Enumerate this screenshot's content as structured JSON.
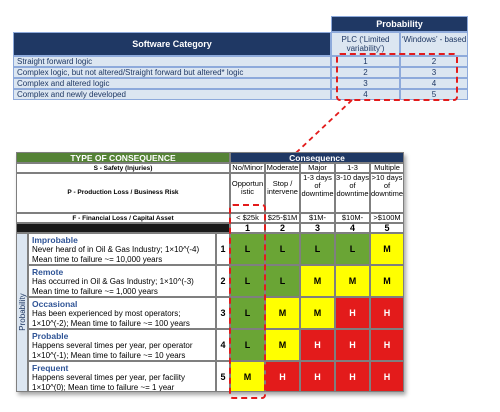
{
  "top_table": {
    "header_probability": "Probability",
    "header_category": "Software Category",
    "col_plc": "PLC (‘Limited variability’)",
    "col_windows": "‘Windows’ - based",
    "rows": [
      {
        "label": "Straight forward logic",
        "plc": "1",
        "win": "2"
      },
      {
        "label": "Complex logic, but not altered/Straight forward but altered* logic",
        "plc": "2",
        "win": "3"
      },
      {
        "label": "Complex and altered logic",
        "plc": "3",
        "win": "4"
      },
      {
        "label": "Complex and newly developed",
        "plc": "4",
        "win": "5"
      }
    ]
  },
  "matrix": {
    "type_header": "TYPE OF CONSEQUENCE",
    "consequence_header": "Consequence",
    "safety_label": "S - Safety (Injuries)",
    "production_label": "P - Production Loss / Business Risk",
    "financial_label": "F - Financial Loss / Capital Asset",
    "axis_label": "Probability",
    "columns": [
      {
        "num": "1",
        "s": "No/Minor",
        "p": "Opportun istic",
        "f": "< $25k"
      },
      {
        "num": "2",
        "s": "Moderate",
        "p": "Stop / intervene",
        "f": "$25-$1M"
      },
      {
        "num": "3",
        "s": "Major",
        "p": "1-3 days of downtime",
        "f": "$1M-"
      },
      {
        "num": "4",
        "s": "1-3",
        "p": "3-10 days of downtime",
        "f": "$10M-"
      },
      {
        "num": "5",
        "s": "Multiple",
        "p": ">10 days of downtime",
        "f": ">$100M"
      }
    ],
    "rows": [
      {
        "num": "1",
        "title": "Improbable",
        "line1": "Never heard of in Oil & Gas Industry; 1×10^(-4)",
        "line2": "Mean time to failure ~= 10,000 years",
        "line3": "",
        "cells": [
          "L",
          "L",
          "L",
          "L",
          "M"
        ]
      },
      {
        "num": "2",
        "title": "Remote",
        "line1": "Has occurred in Oil & Gas Industry; 1×10^(-3)",
        "line2": "Mean time to failure ~= 1,000 years",
        "line3": "",
        "cells": [
          "L",
          "L",
          "M",
          "M",
          "M"
        ]
      },
      {
        "num": "3",
        "title": "Occasional",
        "line1": "Has been experienced by most operators;",
        "line2": "1×10^(-2); Mean time to failure ~= 100 years",
        "line3": "",
        "cells": [
          "L",
          "M",
          "M",
          "H",
          "H"
        ]
      },
      {
        "num": "4",
        "title": "Probable",
        "line1": "Happens several times per year, per operator",
        "line2": "1×10^(-1); Mean time to failure ~= 10 years",
        "line3": "",
        "cells": [
          "L",
          "M",
          "H",
          "H",
          "H"
        ]
      },
      {
        "num": "5",
        "title": "Frequent",
        "line1": "Happens several times per year, per facility",
        "line2": "1×10^(0); Mean time to failure ~= 1 year",
        "line3": "",
        "cells": [
          "M",
          "H",
          "H",
          "H",
          "H"
        ]
      }
    ]
  },
  "colors": {
    "L": "#6aa535",
    "M": "#ffff00",
    "H": "#e31b1b",
    "navy": "#1f3864",
    "highlight": "#e31b1b"
  }
}
